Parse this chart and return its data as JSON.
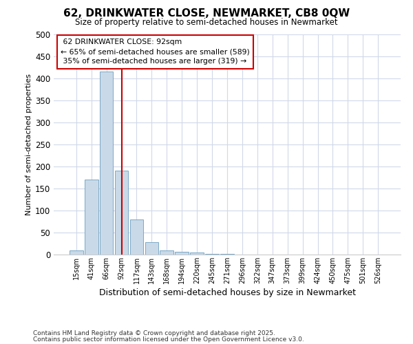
{
  "title": "62, DRINKWATER CLOSE, NEWMARKET, CB8 0QW",
  "subtitle": "Size of property relative to semi-detached houses in Newmarket",
  "xlabel": "Distribution of semi-detached houses by size in Newmarket",
  "ylabel": "Number of semi-detached properties",
  "bin_labels": [
    "15sqm",
    "41sqm",
    "66sqm",
    "92sqm",
    "117sqm",
    "143sqm",
    "168sqm",
    "194sqm",
    "220sqm",
    "245sqm",
    "271sqm",
    "296sqm",
    "322sqm",
    "347sqm",
    "373sqm",
    "399sqm",
    "424sqm",
    "450sqm",
    "475sqm",
    "501sqm",
    "526sqm"
  ],
  "bar_values": [
    10,
    170,
    415,
    190,
    80,
    28,
    10,
    7,
    5,
    2,
    2,
    0,
    0,
    0,
    0,
    0,
    0,
    0,
    0,
    0,
    0
  ],
  "bar_color": "#c9d9e8",
  "bar_edge_color": "#7aa8c7",
  "property_line_x": 3,
  "property_label": "62 DRINKWATER CLOSE: 92sqm",
  "smaller_pct": "65%",
  "smaller_count": 589,
  "larger_pct": "35%",
  "larger_count": 319,
  "annotation_box_color": "#ffffff",
  "annotation_box_edge_color": "#cc0000",
  "property_line_color": "#cc0000",
  "footnote1": "Contains HM Land Registry data © Crown copyright and database right 2025.",
  "footnote2": "Contains public sector information licensed under the Open Government Licence v3.0.",
  "background_color": "#ffffff",
  "grid_color": "#d0d8e8",
  "ylim": [
    0,
    500
  ],
  "fig_width": 6.0,
  "fig_height": 5.0,
  "dpi": 100
}
